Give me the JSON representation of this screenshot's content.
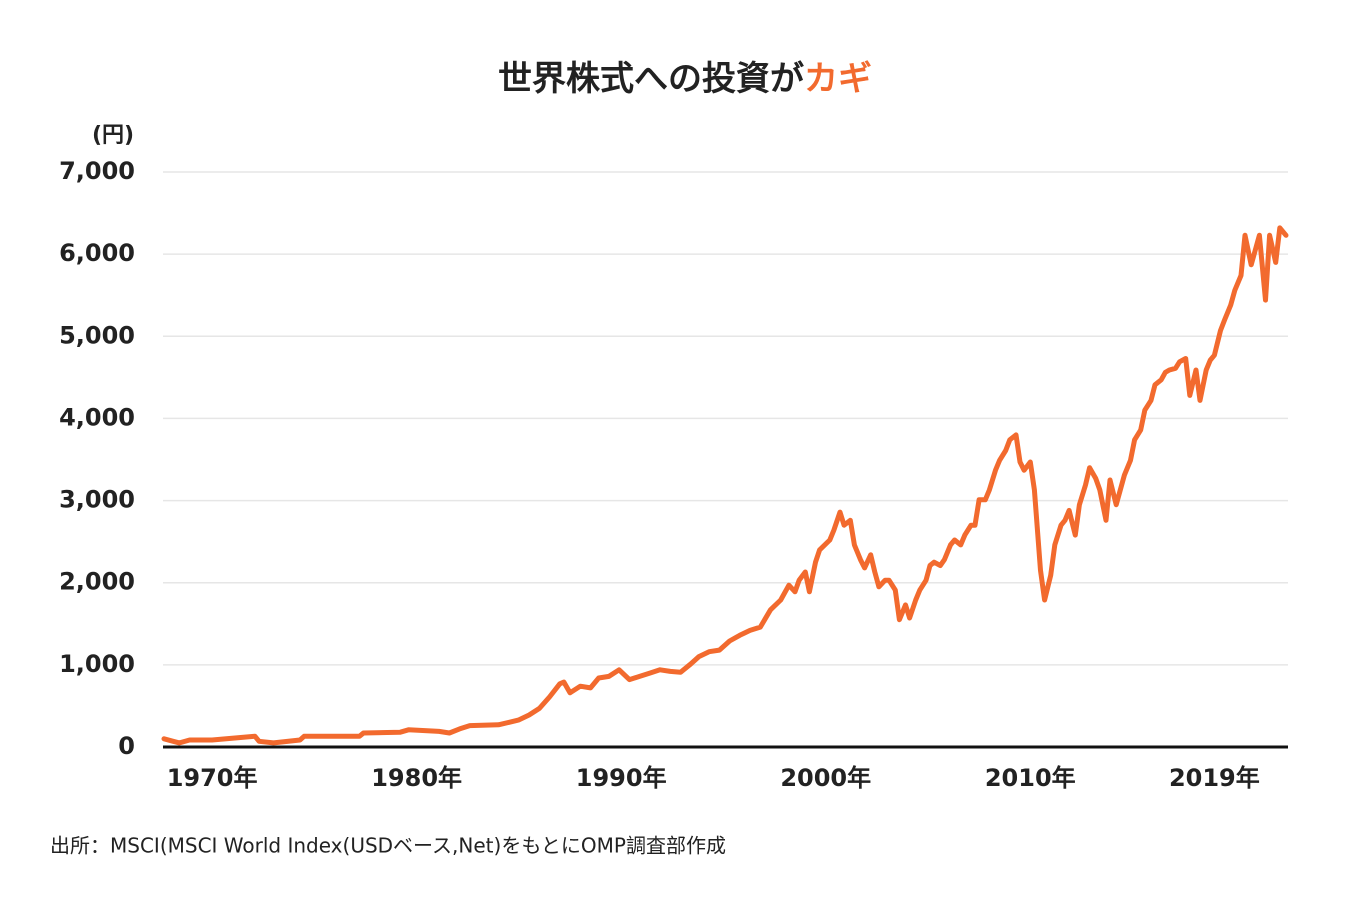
{
  "chart_data": {
    "type": "line",
    "title": "世界株式への投資が",
    "title_highlight": "カギ",
    "y_label": "(円)",
    "source": "出所：MSCI(MSCI World Index(USDベース,Net)をもとにOMP調査部作成",
    "xlim": [
      1967.6,
      2022.6
    ],
    "xticks": [
      {
        "value": 1970,
        "label": "1970年"
      },
      {
        "value": 1980,
        "label": "1980年"
      },
      {
        "value": 1990,
        "label": "1990年"
      },
      {
        "value": 2000,
        "label": "2000年"
      },
      {
        "value": 2010,
        "label": "2010年"
      },
      {
        "value": 2019,
        "label": "2019年"
      }
    ],
    "ylim": [
      0,
      7000
    ],
    "yticks": [
      0,
      {
        "value": 1000,
        "label": "1,000"
      },
      {
        "value": 2000,
        "label": "2,000"
      },
      {
        "value": 3000,
        "label": "3,000"
      },
      {
        "value": 4000,
        "label": "4,000"
      },
      {
        "value": 5000,
        "label": "5,000"
      },
      {
        "value": 6000,
        "label": "6,000"
      },
      {
        "value": 7000,
        "label": "7,000"
      }
    ],
    "grid": true,
    "series": [
      {
        "color": "#f26a2e",
        "x": [
          1967.65,
          1968.1,
          1968.4,
          1968.9,
          1970,
          1972.1,
          1972.3,
          1973.0,
          1974.3,
          1974.5,
          1977.2,
          1977.4,
          1979.2,
          1979.6,
          1981.1,
          1981.6,
          1982.1,
          1982.6,
          1984.0,
          1984.5,
          1985.0,
          1985.5,
          1986.0,
          1986.5,
          1987.0,
          1987.2,
          1987.5,
          1988.0,
          1988.5,
          1988.9,
          1989.4,
          1989.9,
          1990.4,
          1990.9,
          1991.4,
          1991.9,
          1992.4,
          1992.9,
          1993.4,
          1993.8,
          1994.3,
          1994.8,
          1995.3,
          1995.8,
          1996.3,
          1996.8,
          1997.3,
          1997.8,
          1998.2,
          1998.5,
          1998.7,
          1999.0,
          1999.2,
          1999.5,
          1999.7,
          2000.2,
          2000.4,
          2000.7,
          2000.9,
          2001.2,
          2001.4,
          2001.7,
          2001.9,
          2002.2,
          2002.4,
          2002.6,
          2002.9,
          2003.1,
          2003.4,
          2003.6,
          2003.9,
          2004.1,
          2004.4,
          2004.6,
          2004.9,
          2005.1,
          2005.3,
          2005.6,
          2005.8,
          2006.1,
          2006.3,
          2006.6,
          2006.8,
          2007.1,
          2007.3,
          2007.5,
          2007.8,
          2008.0,
          2008.3,
          2008.5,
          2008.8,
          2009.0,
          2009.3,
          2009.5,
          2009.7,
          2010.0,
          2010.2,
          2010.5,
          2010.7,
          2011.0,
          2011.2,
          2011.5,
          2011.7,
          2011.9,
          2012.2,
          2012.4,
          2012.7,
          2012.9,
          2013.2,
          2013.4,
          2013.7,
          2013.9,
          2014.2,
          2014.4,
          2014.6,
          2014.9,
          2015.1,
          2015.4,
          2015.6,
          2015.9,
          2016.1,
          2016.4,
          2016.6,
          2016.8,
          2017.1,
          2017.3,
          2017.6,
          2017.8,
          2018.1,
          2018.3,
          2018.6,
          2018.8,
          2019.0,
          2019.3,
          2019.5,
          2019.8,
          2020.0,
          2020.3,
          2020.5,
          2020.8,
          2021.0,
          2021.2,
          2021.5,
          2021.7,
          2022.0,
          2022.2,
          2022.5
        ],
        "values": [
          100,
          70,
          50,
          85,
          85,
          130,
          70,
          50,
          85,
          130,
          130,
          170,
          180,
          210,
          190,
          170,
          220,
          260,
          270,
          300,
          330,
          390,
          470,
          610,
          770,
          790,
          660,
          740,
          720,
          840,
          860,
          940,
          820,
          860,
          900,
          940,
          920,
          910,
          1010,
          1100,
          1160,
          1180,
          1290,
          1360,
          1420,
          1460,
          1670,
          1790,
          1970,
          1890,
          2030,
          2130,
          1890,
          2250,
          2400,
          2520,
          2640,
          2860,
          2700,
          2760,
          2460,
          2280,
          2180,
          2340,
          2130,
          1950,
          2030,
          2030,
          1910,
          1550,
          1730,
          1570,
          1790,
          1910,
          2030,
          2210,
          2250,
          2210,
          2280,
          2460,
          2520,
          2460,
          2580,
          2700,
          2700,
          3010,
          3010,
          3130,
          3370,
          3490,
          3610,
          3740,
          3800,
          3470,
          3370,
          3470,
          3130,
          2150,
          1790,
          2090,
          2460,
          2700,
          2760,
          2880,
          2580,
          2950,
          3190,
          3400,
          3270,
          3130,
          2760,
          3250,
          2950,
          3130,
          3310,
          3490,
          3740,
          3860,
          4100,
          4220,
          4410,
          4470,
          4560,
          4590,
          4610,
          4690,
          4730,
          4280,
          4590,
          4220,
          4590,
          4710,
          4770,
          5070,
          5200,
          5380,
          5560,
          5740,
          6230,
          5870,
          6050,
          6230,
          5440,
          6230,
          5900,
          6320,
          6230
        ]
      }
    ]
  }
}
